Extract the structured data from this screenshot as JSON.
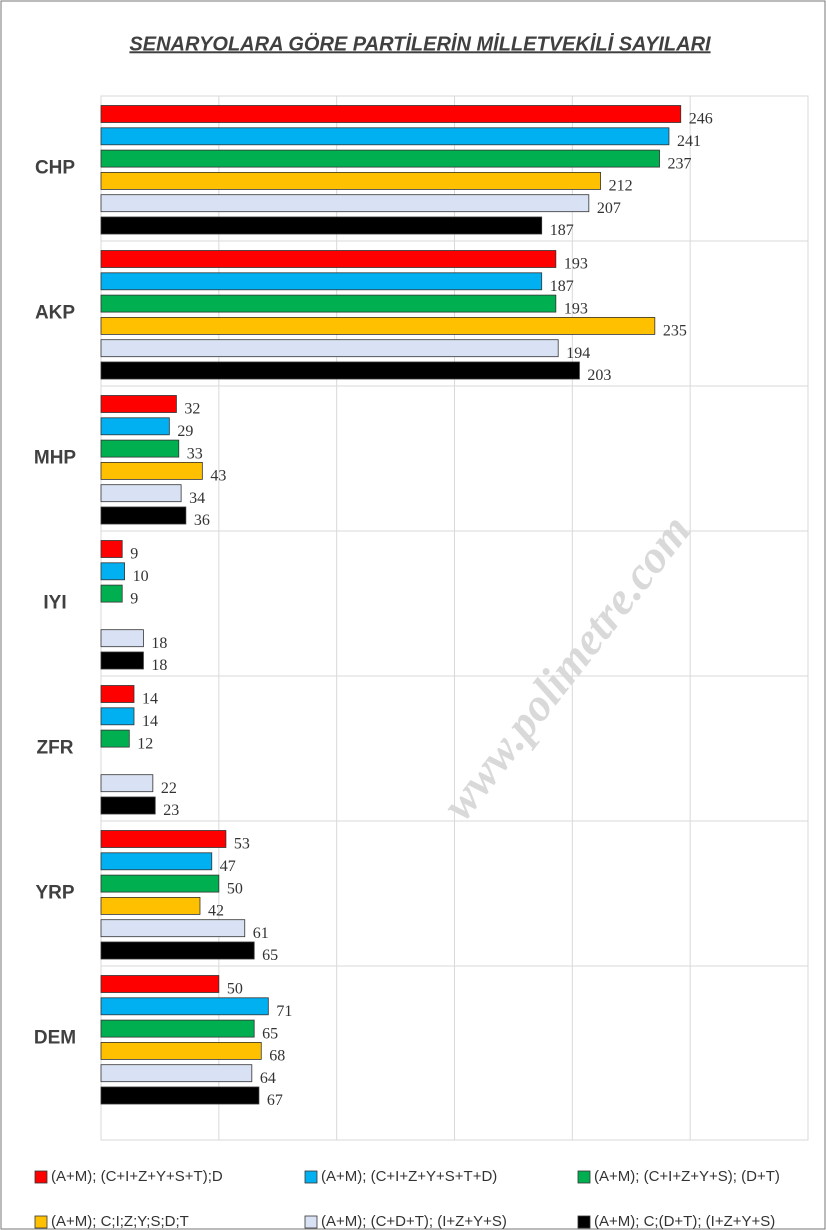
{
  "chart_data": {
    "type": "bar",
    "orientation": "horizontal",
    "title": "SENARYOLARA  GÖRE PARTİLERİN MİLLETVEKİLİ SAYILARI",
    "watermark": "www.polimetre.com",
    "categories": [
      "CHP",
      "AKP",
      "MHP",
      "IYI",
      "ZFR",
      "YRP",
      "DEM"
    ],
    "series": [
      {
        "name": "(A+M); (C+I+Z+Y+S+T);D",
        "color": "#ff0000",
        "values": [
          246,
          193,
          32,
          9,
          14,
          53,
          50
        ]
      },
      {
        "name": "(A+M); (C+I+Z+Y+S+T+D)",
        "color": "#00b0f0",
        "values": [
          241,
          187,
          29,
          10,
          14,
          47,
          71
        ]
      },
      {
        "name": "(A+M); (C+I+Z+Y+S); (D+T)",
        "color": "#00b050",
        "values": [
          237,
          193,
          33,
          9,
          12,
          50,
          65
        ]
      },
      {
        "name": "(A+M); C;I;Z;Y;S;D;T",
        "color": "#ffc000",
        "values": [
          212,
          235,
          43,
          null,
          null,
          42,
          68
        ]
      },
      {
        "name": "(A+M); (C+D+T); (I+Z+Y+S)",
        "color": "#d9e1f4",
        "values": [
          207,
          194,
          34,
          18,
          22,
          61,
          64
        ]
      },
      {
        "name": "(A+M); C;(D+T); (I+Z+Y+S)",
        "color": "#000000",
        "values": [
          187,
          203,
          36,
          18,
          23,
          65,
          67
        ]
      }
    ],
    "xlim": [
      0,
      300
    ],
    "xticks": [
      0,
      50,
      100,
      150,
      200,
      250,
      300
    ],
    "grid": true
  }
}
